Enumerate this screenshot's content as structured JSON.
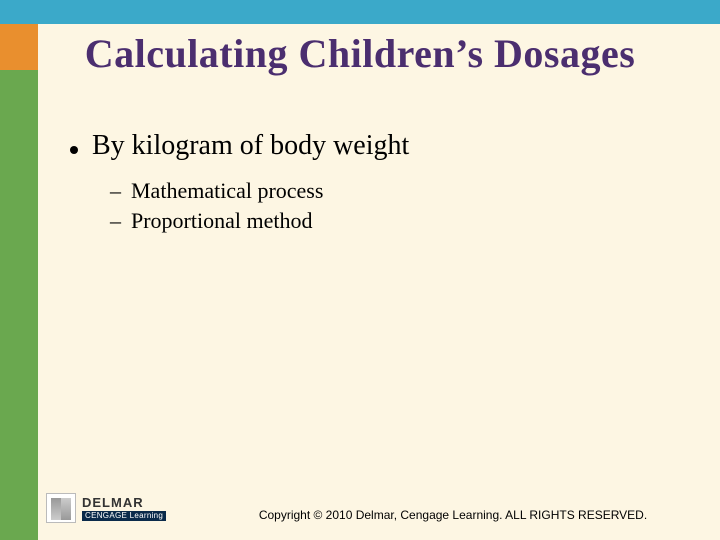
{
  "colors": {
    "background": "#fdf6e3",
    "top_bar": "#3ba9c9",
    "title_color": "#4b2e6f",
    "left_stripe": [
      "#e98f2e",
      "#6aa84f",
      "#6aa84f",
      "#6aa84f"
    ]
  },
  "title": "Calculating Children’s Dosages",
  "bullets": {
    "main": "By kilogram of body weight",
    "subs": [
      "Mathematical process",
      "Proportional method"
    ]
  },
  "logo": {
    "primary": "DELMAR",
    "sub": "CENGAGE Learning"
  },
  "copyright": "Copyright © 2010 Delmar, Cengage Learning. ALL RIGHTS RESERVED.",
  "typography": {
    "title_fontsize": 40,
    "l1_fontsize": 28,
    "l2_fontsize": 22,
    "footer_fontsize": 12,
    "font_family": "Times New Roman"
  }
}
